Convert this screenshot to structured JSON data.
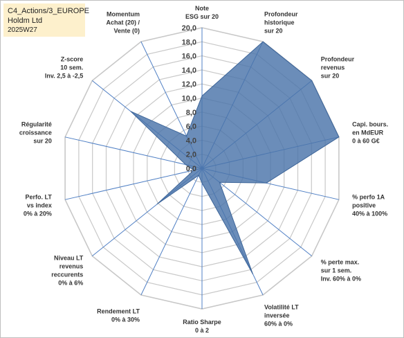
{
  "header": {
    "line1": "C4_Actions/3_EUROPE",
    "line2": "Holdm Ltd",
    "line3": "2025W27"
  },
  "chart_data": {
    "type": "radar",
    "title": "",
    "rlim": [
      0,
      20
    ],
    "ticks": [
      "0,0",
      "2,0",
      "4,0",
      "6,0",
      "8,0",
      "10,0",
      "12,0",
      "14,0",
      "16,0",
      "18,0",
      "20,0"
    ],
    "categories": [
      [
        "Note",
        "ESG sur 20"
      ],
      [
        "Profondeur",
        "historique",
        "sur 20"
      ],
      [
        "Profondeur",
        "revenus",
        "sur 20"
      ],
      [
        "Capi. bours.",
        "en MdEUR",
        "0 à 60 G€"
      ],
      [
        "% perfo 1A",
        "positive",
        "40% à 100%"
      ],
      [
        "% perte max.",
        "sur 1 sem.",
        "Inv. 60% à 0%"
      ],
      [
        "Volatilité LT",
        "inversée",
        "60% à 0%"
      ],
      [
        "Ratio Sharpe",
        "0 à 2"
      ],
      [
        "Rendement LT",
        "0% à 30%"
      ],
      [
        "Niveau LT",
        "revenus",
        "reccurents",
        "0% à 6%"
      ],
      [
        "Perfo. LT",
        "vs index",
        "0% à 20%"
      ],
      [
        "Régularité",
        "croissance",
        "sur 20"
      ],
      [
        "Z-score",
        "10 sem.",
        "Inv. 2,5 à -2,5"
      ],
      [
        "Momentum",
        "Achat (20) /",
        "Vente (0)"
      ]
    ],
    "values": [
      10.3,
      20,
      20,
      20,
      9.4,
      3.2,
      16.7,
      2.1,
      1.1,
      8.2,
      1.2,
      2.4,
      13.0,
      5.1
    ],
    "grid": true,
    "legend": "none",
    "colors": {
      "fill": "#4a74aa",
      "grid": "#c8c8c8",
      "spoke": "#4f7fc4"
    }
  }
}
